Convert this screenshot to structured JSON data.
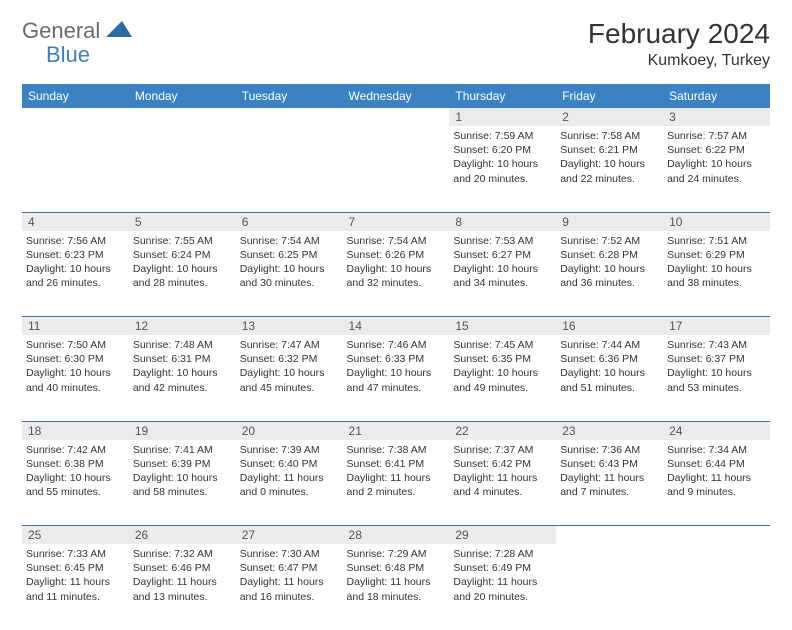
{
  "logo": {
    "word1": "General",
    "word2": "Blue"
  },
  "header": {
    "title": "February 2024",
    "location": "Kumkoey, Turkey"
  },
  "colors": {
    "header_bg": "#3b82c4",
    "header_text": "#ffffff",
    "rule": "#3b6fa0",
    "daynum_bg": "#ebebeb",
    "text": "#333333",
    "logo_gray": "#6b6b6b",
    "logo_blue": "#3b7fc4"
  },
  "typography": {
    "title_size": 28,
    "location_size": 16,
    "dayhead_size": 12,
    "cell_size": 10.5
  },
  "dayheads": [
    "Sunday",
    "Monday",
    "Tuesday",
    "Wednesday",
    "Thursday",
    "Friday",
    "Saturday"
  ],
  "weeks": [
    [
      {
        "n": "",
        "sr": "",
        "ss": "",
        "dl": ""
      },
      {
        "n": "",
        "sr": "",
        "ss": "",
        "dl": ""
      },
      {
        "n": "",
        "sr": "",
        "ss": "",
        "dl": ""
      },
      {
        "n": "",
        "sr": "",
        "ss": "",
        "dl": ""
      },
      {
        "n": "1",
        "sr": "Sunrise: 7:59 AM",
        "ss": "Sunset: 6:20 PM",
        "dl": "Daylight: 10 hours and 20 minutes."
      },
      {
        "n": "2",
        "sr": "Sunrise: 7:58 AM",
        "ss": "Sunset: 6:21 PM",
        "dl": "Daylight: 10 hours and 22 minutes."
      },
      {
        "n": "3",
        "sr": "Sunrise: 7:57 AM",
        "ss": "Sunset: 6:22 PM",
        "dl": "Daylight: 10 hours and 24 minutes."
      }
    ],
    [
      {
        "n": "4",
        "sr": "Sunrise: 7:56 AM",
        "ss": "Sunset: 6:23 PM",
        "dl": "Daylight: 10 hours and 26 minutes."
      },
      {
        "n": "5",
        "sr": "Sunrise: 7:55 AM",
        "ss": "Sunset: 6:24 PM",
        "dl": "Daylight: 10 hours and 28 minutes."
      },
      {
        "n": "6",
        "sr": "Sunrise: 7:54 AM",
        "ss": "Sunset: 6:25 PM",
        "dl": "Daylight: 10 hours and 30 minutes."
      },
      {
        "n": "7",
        "sr": "Sunrise: 7:54 AM",
        "ss": "Sunset: 6:26 PM",
        "dl": "Daylight: 10 hours and 32 minutes."
      },
      {
        "n": "8",
        "sr": "Sunrise: 7:53 AM",
        "ss": "Sunset: 6:27 PM",
        "dl": "Daylight: 10 hours and 34 minutes."
      },
      {
        "n": "9",
        "sr": "Sunrise: 7:52 AM",
        "ss": "Sunset: 6:28 PM",
        "dl": "Daylight: 10 hours and 36 minutes."
      },
      {
        "n": "10",
        "sr": "Sunrise: 7:51 AM",
        "ss": "Sunset: 6:29 PM",
        "dl": "Daylight: 10 hours and 38 minutes."
      }
    ],
    [
      {
        "n": "11",
        "sr": "Sunrise: 7:50 AM",
        "ss": "Sunset: 6:30 PM",
        "dl": "Daylight: 10 hours and 40 minutes."
      },
      {
        "n": "12",
        "sr": "Sunrise: 7:48 AM",
        "ss": "Sunset: 6:31 PM",
        "dl": "Daylight: 10 hours and 42 minutes."
      },
      {
        "n": "13",
        "sr": "Sunrise: 7:47 AM",
        "ss": "Sunset: 6:32 PM",
        "dl": "Daylight: 10 hours and 45 minutes."
      },
      {
        "n": "14",
        "sr": "Sunrise: 7:46 AM",
        "ss": "Sunset: 6:33 PM",
        "dl": "Daylight: 10 hours and 47 minutes."
      },
      {
        "n": "15",
        "sr": "Sunrise: 7:45 AM",
        "ss": "Sunset: 6:35 PM",
        "dl": "Daylight: 10 hours and 49 minutes."
      },
      {
        "n": "16",
        "sr": "Sunrise: 7:44 AM",
        "ss": "Sunset: 6:36 PM",
        "dl": "Daylight: 10 hours and 51 minutes."
      },
      {
        "n": "17",
        "sr": "Sunrise: 7:43 AM",
        "ss": "Sunset: 6:37 PM",
        "dl": "Daylight: 10 hours and 53 minutes."
      }
    ],
    [
      {
        "n": "18",
        "sr": "Sunrise: 7:42 AM",
        "ss": "Sunset: 6:38 PM",
        "dl": "Daylight: 10 hours and 55 minutes."
      },
      {
        "n": "19",
        "sr": "Sunrise: 7:41 AM",
        "ss": "Sunset: 6:39 PM",
        "dl": "Daylight: 10 hours and 58 minutes."
      },
      {
        "n": "20",
        "sr": "Sunrise: 7:39 AM",
        "ss": "Sunset: 6:40 PM",
        "dl": "Daylight: 11 hours and 0 minutes."
      },
      {
        "n": "21",
        "sr": "Sunrise: 7:38 AM",
        "ss": "Sunset: 6:41 PM",
        "dl": "Daylight: 11 hours and 2 minutes."
      },
      {
        "n": "22",
        "sr": "Sunrise: 7:37 AM",
        "ss": "Sunset: 6:42 PM",
        "dl": "Daylight: 11 hours and 4 minutes."
      },
      {
        "n": "23",
        "sr": "Sunrise: 7:36 AM",
        "ss": "Sunset: 6:43 PM",
        "dl": "Daylight: 11 hours and 7 minutes."
      },
      {
        "n": "24",
        "sr": "Sunrise: 7:34 AM",
        "ss": "Sunset: 6:44 PM",
        "dl": "Daylight: 11 hours and 9 minutes."
      }
    ],
    [
      {
        "n": "25",
        "sr": "Sunrise: 7:33 AM",
        "ss": "Sunset: 6:45 PM",
        "dl": "Daylight: 11 hours and 11 minutes."
      },
      {
        "n": "26",
        "sr": "Sunrise: 7:32 AM",
        "ss": "Sunset: 6:46 PM",
        "dl": "Daylight: 11 hours and 13 minutes."
      },
      {
        "n": "27",
        "sr": "Sunrise: 7:30 AM",
        "ss": "Sunset: 6:47 PM",
        "dl": "Daylight: 11 hours and 16 minutes."
      },
      {
        "n": "28",
        "sr": "Sunrise: 7:29 AM",
        "ss": "Sunset: 6:48 PM",
        "dl": "Daylight: 11 hours and 18 minutes."
      },
      {
        "n": "29",
        "sr": "Sunrise: 7:28 AM",
        "ss": "Sunset: 6:49 PM",
        "dl": "Daylight: 11 hours and 20 minutes."
      },
      {
        "n": "",
        "sr": "",
        "ss": "",
        "dl": ""
      },
      {
        "n": "",
        "sr": "",
        "ss": "",
        "dl": ""
      }
    ]
  ]
}
